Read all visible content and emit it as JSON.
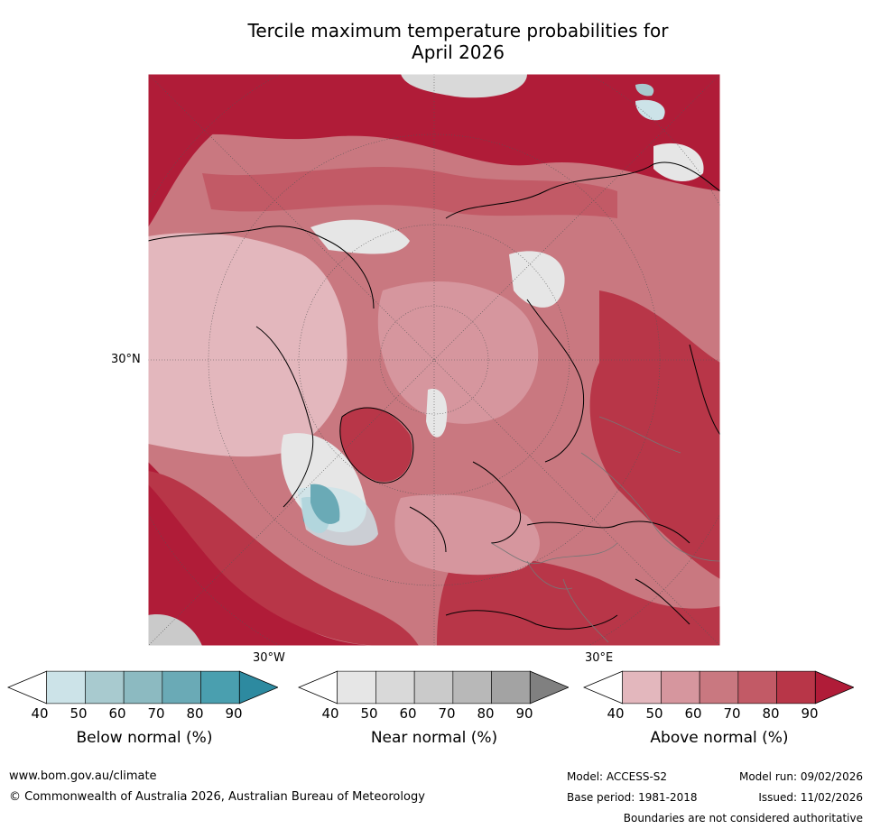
{
  "title": {
    "line1": "Tercile maximum temperature probabilities for",
    "line2": "April 2026"
  },
  "map": {
    "projection": "north-polar-stereographic",
    "labels": {
      "lat": "30°N",
      "lon_west": "30°W",
      "lon_east": "30°E"
    }
  },
  "colorbars": [
    {
      "label": "Below normal (%)",
      "ticks": [
        "40",
        "50",
        "60",
        "70",
        "80",
        "90"
      ],
      "colors": [
        "#ffffff",
        "#cce3e8",
        "#a8cacf",
        "#8cbac1",
        "#6aaab6",
        "#4a9faf",
        "#2d8aa0"
      ]
    },
    {
      "label": "Near normal (%)",
      "ticks": [
        "40",
        "50",
        "60",
        "70",
        "80",
        "90"
      ],
      "colors": [
        "#ffffff",
        "#e6e6e6",
        "#d9d9d9",
        "#cacaca",
        "#b8b8b8",
        "#a3a3a3",
        "#808080"
      ]
    },
    {
      "label": "Above normal (%)",
      "ticks": [
        "40",
        "50",
        "60",
        "70",
        "80",
        "90"
      ],
      "colors": [
        "#ffffff",
        "#e3b7bd",
        "#d6969e",
        "#c97880",
        "#c25a66",
        "#b83648",
        "#b01c38"
      ]
    }
  ],
  "footer": {
    "url": "www.bom.gov.au/climate",
    "copyright": "© Commonwealth of Australia 2026, Australian Bureau of Meteorology",
    "model": "Model: ACCESS-S2",
    "model_run": "Model run: 09/02/2026",
    "base_period": "Base period: 1981-2018",
    "issued": "Issued: 11/02/2026",
    "disclaimer": "Boundaries are not considered authoritative"
  }
}
